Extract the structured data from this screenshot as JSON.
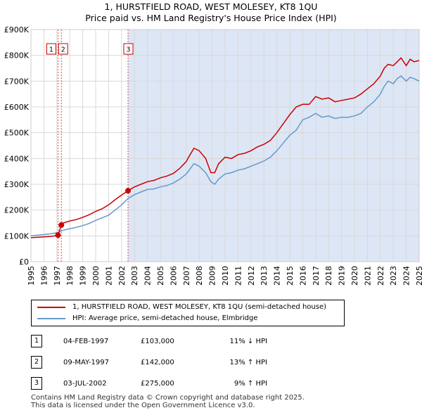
{
  "title_line1": "1, HURSTFIELD ROAD, WEST MOLESEY, KT8 1QU",
  "title_line2": "Price paid vs. HM Land Registry's House Price Index (HPI)",
  "colors": {
    "property": "#cc0000",
    "hpi": "#6699cc",
    "shade": "#dde6f5",
    "grid": "#d8d8d8"
  },
  "legend": {
    "property_label": "1, HURSTFIELD ROAD, WEST MOLESEY, KT8 1QU (semi-detached house)",
    "hpi_label": "HPI: Average price, semi-detached house, Elmbridge"
  },
  "sales": [
    {
      "num": "1",
      "date": "04-FEB-1997",
      "price": "£103,000",
      "hpi": "11% ↓ HPI"
    },
    {
      "num": "2",
      "date": "09-MAY-1997",
      "price": "£142,000",
      "hpi": "13% ↑ HPI"
    },
    {
      "num": "3",
      "date": "03-JUL-2002",
      "price": "£275,000",
      "hpi": "9% ↑ HPI"
    }
  ],
  "footer_line1": "Contains HM Land Registry data © Crown copyright and database right 2025.",
  "footer_line2": "This data is licensed under the Open Government Licence v3.0.",
  "chart_data": {
    "type": "line",
    "title": "1, HURSTFIELD ROAD, WEST MOLESEY, KT8 1QU - Price paid vs. HM Land Registry's House Price Index (HPI)",
    "xlim": [
      1995,
      2025
    ],
    "ylim": [
      0,
      900000
    ],
    "x_ticks": [
      "1995",
      "1996",
      "1997",
      "1998",
      "1999",
      "2000",
      "2001",
      "2002",
      "2003",
      "2004",
      "2005",
      "2006",
      "2007",
      "2008",
      "2009",
      "2010",
      "2011",
      "2012",
      "2013",
      "2014",
      "2015",
      "2016",
      "2017",
      "2018",
      "2019",
      "2020",
      "2021",
      "2022",
      "2023",
      "2024",
      "2025"
    ],
    "y_ticks": [
      0,
      100000,
      200000,
      300000,
      400000,
      500000,
      600000,
      700000,
      800000,
      900000
    ],
    "y_tick_labels": [
      "£0",
      "£100K",
      "£200K",
      "£300K",
      "£400K",
      "£500K",
      "£600K",
      "£700K",
      "£800K",
      "£900K"
    ],
    "shaded_region": [
      2002.5,
      2025
    ],
    "series": [
      {
        "name": "1, HURSTFIELD ROAD, WEST MOLESEY, KT8 1QU (semi-detached house)",
        "x": [
          1995.0,
          1996.0,
          1996.5,
          1997.0,
          1997.09,
          1997.1,
          1997.35,
          1997.5,
          1998.0,
          1998.5,
          1999.0,
          1999.5,
          2000.0,
          2000.5,
          2001.0,
          2001.5,
          2002.0,
          2002.5,
          2003.0,
          2003.5,
          2004.0,
          2004.5,
          2005.0,
          2005.5,
          2006.0,
          2006.5,
          2007.0,
          2007.3,
          2007.6,
          2008.0,
          2008.5,
          2008.9,
          2009.2,
          2009.5,
          2010.0,
          2010.5,
          2011.0,
          2011.5,
          2012.0,
          2012.5,
          2013.0,
          2013.5,
          2014.0,
          2014.5,
          2015.0,
          2015.5,
          2016.0,
          2016.5,
          2017.0,
          2017.5,
          2018.0,
          2018.5,
          2019.0,
          2019.5,
          2020.0,
          2020.5,
          2021.0,
          2021.5,
          2022.0,
          2022.3,
          2022.6,
          2023.0,
          2023.3,
          2023.6,
          2024.0,
          2024.3,
          2024.6,
          2025.0
        ],
        "y": [
          93000,
          96000,
          98000,
          101000,
          103000,
          103000,
          142000,
          150000,
          158000,
          163000,
          172000,
          182000,
          195000,
          205000,
          220000,
          240000,
          258000,
          275000,
          290000,
          300000,
          310000,
          315000,
          325000,
          332000,
          342000,
          362000,
          388000,
          415000,
          440000,
          430000,
          400000,
          345000,
          345000,
          380000,
          405000,
          400000,
          415000,
          420000,
          430000,
          445000,
          455000,
          470000,
          500000,
          535000,
          570000,
          600000,
          610000,
          610000,
          640000,
          630000,
          635000,
          620000,
          625000,
          630000,
          635000,
          650000,
          670000,
          690000,
          720000,
          750000,
          765000,
          760000,
          775000,
          790000,
          760000,
          785000,
          775000,
          780000
        ]
      },
      {
        "name": "HPI: Average price, semi-detached house, Elmbridge",
        "x": [
          1995.0,
          1996.0,
          1996.5,
          1997.0,
          1997.5,
          1998.0,
          1998.5,
          1999.0,
          1999.5,
          2000.0,
          2000.5,
          2001.0,
          2001.5,
          2002.0,
          2002.5,
          2003.0,
          2003.5,
          2004.0,
          2004.5,
          2005.0,
          2005.5,
          2006.0,
          2006.5,
          2007.0,
          2007.3,
          2007.6,
          2008.0,
          2008.5,
          2008.9,
          2009.2,
          2009.5,
          2010.0,
          2010.5,
          2011.0,
          2011.5,
          2012.0,
          2012.5,
          2013.0,
          2013.5,
          2014.0,
          2014.5,
          2015.0,
          2015.5,
          2016.0,
          2016.5,
          2017.0,
          2017.5,
          2018.0,
          2018.5,
          2019.0,
          2019.5,
          2020.0,
          2020.5,
          2021.0,
          2021.5,
          2022.0,
          2022.3,
          2022.6,
          2023.0,
          2023.3,
          2023.6,
          2024.0,
          2024.3,
          2024.6,
          2025.0
        ],
        "y": [
          100000,
          105000,
          108000,
          112000,
          122000,
          128000,
          133000,
          140000,
          148000,
          160000,
          170000,
          180000,
          200000,
          220000,
          245000,
          260000,
          270000,
          280000,
          282000,
          290000,
          295000,
          305000,
          320000,
          340000,
          360000,
          380000,
          370000,
          345000,
          310000,
          300000,
          320000,
          340000,
          345000,
          355000,
          360000,
          370000,
          380000,
          390000,
          405000,
          430000,
          460000,
          490000,
          510000,
          550000,
          560000,
          575000,
          560000,
          565000,
          555000,
          560000,
          560000,
          565000,
          575000,
          600000,
          620000,
          650000,
          680000,
          700000,
          690000,
          710000,
          720000,
          700000,
          715000,
          710000,
          700000
        ]
      }
    ],
    "annotations": [
      {
        "label": "1",
        "x": 1997.09,
        "y": 103000
      },
      {
        "label": "2",
        "x": 1997.35,
        "y": 142000
      },
      {
        "label": "3",
        "x": 2002.5,
        "y": 275000
      }
    ]
  }
}
